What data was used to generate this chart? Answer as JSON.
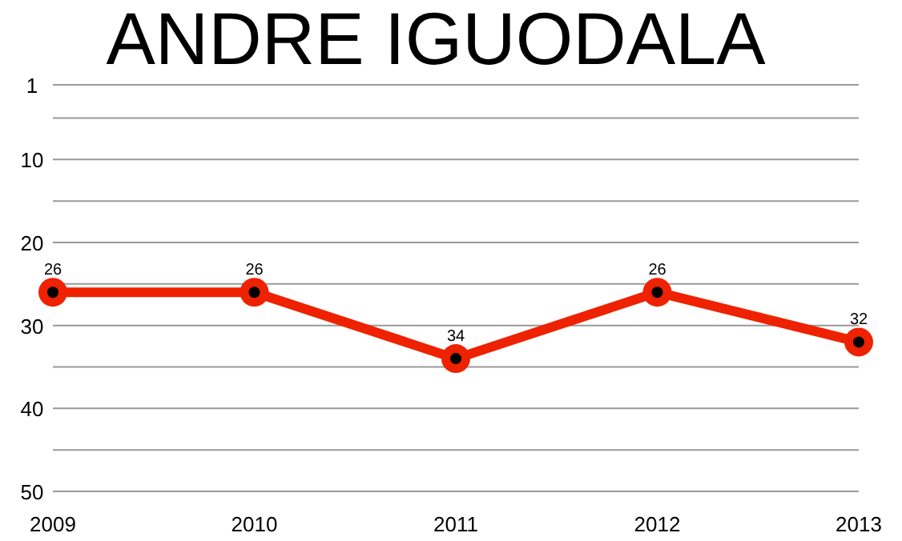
{
  "chart_data": {
    "type": "line",
    "title": "ANDRE IGUODALA",
    "x": [
      2009,
      2010,
      2011,
      2012,
      2013
    ],
    "series": [
      {
        "color": "#ee2200",
        "values": [
          26,
          26,
          34,
          26,
          32
        ]
      }
    ],
    "xlim": [
      2009,
      2013
    ],
    "xticks": [
      2009,
      2010,
      2011,
      2012,
      2013
    ],
    "ylim": [
      50,
      1
    ],
    "yticks": [
      1,
      {
        "value": 5,
        "label": null
      },
      10,
      {
        "value": 15,
        "label": null
      },
      20,
      {
        "value": 25,
        "label": null
      },
      30,
      {
        "value": 35,
        "label": null
      },
      40,
      {
        "value": 45,
        "label": null
      },
      50
    ],
    "grid": "y",
    "marker": "circle",
    "line_style": "solid",
    "data_labels": true
  }
}
